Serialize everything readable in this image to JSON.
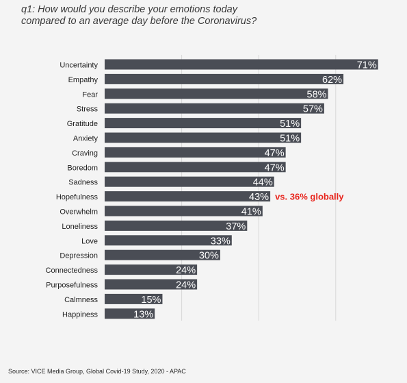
{
  "title": {
    "line1": "q1: How would you describe your emotions today",
    "line2": "compared to an average day before the Coronavirus?"
  },
  "source": "Source: VICE Media Group, Global Covid-19 Study, 2020 - APAC",
  "colors": {
    "bar": "#4a4d55",
    "bar_label": "#ffffff",
    "annotation": "#e8241c",
    "grid": "#d8d8d8",
    "category_text": "#222222"
  },
  "chart_data": {
    "type": "bar",
    "orientation": "horizontal",
    "title": "q1: How would you describe your emotions today compared to an average day before the Coronavirus?",
    "categories": [
      "Uncertainty",
      "Empathy",
      "Fear",
      "Stress",
      "Gratitude",
      "Anxiety",
      "Craving",
      "Boredom",
      "Sadness",
      "Hopefulness",
      "Overwhelm",
      "Loneliness",
      "Love",
      "Depression",
      "Connectedness",
      "Purposefulness",
      "Calmness",
      "Happiness"
    ],
    "values": [
      71,
      62,
      58,
      57,
      51,
      51,
      47,
      47,
      44,
      43,
      41,
      37,
      33,
      30,
      24,
      24,
      15,
      13
    ],
    "value_labels": [
      "71%",
      "62%",
      "58%",
      "57%",
      "51%",
      "51%",
      "47%",
      "47%",
      "44%",
      "43%",
      "41%",
      "37%",
      "33%",
      "30%",
      "24%",
      "24%",
      "15%",
      "13%"
    ],
    "xlim": [
      0,
      72
    ],
    "gridlines": [
      20,
      40,
      60
    ],
    "grid": true,
    "legend": "none",
    "annotations": [
      {
        "category": "Hopefulness",
        "text": "vs. 36% globally"
      }
    ]
  }
}
